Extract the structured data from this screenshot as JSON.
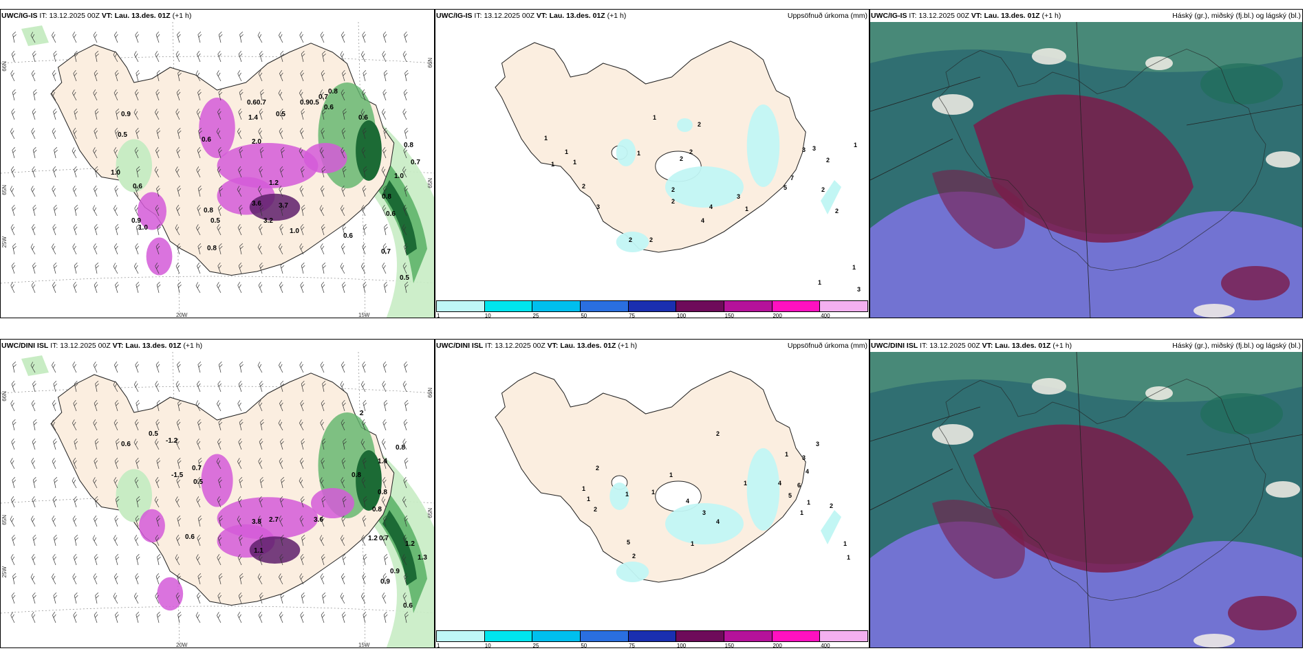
{
  "rows": [
    {
      "panels": [
        {
          "model": "UWC/IG-IS",
          "it_label": "IT:",
          "it_value": "13.12.2025 00Z",
          "vt_label": "VT:",
          "vt_value": "Lau. 13.des. 01Z",
          "offset": "(+1 h)",
          "right_title": ""
        },
        {
          "model": "UWC/IG-IS",
          "it_label": "IT:",
          "it_value": "13.12.2025 00Z",
          "vt_label": "VT:",
          "vt_value": "Lau. 13.des. 01Z",
          "offset": "(+1 h)",
          "right_title": "Uppsöfnuð úrkoma (mm)"
        },
        {
          "model": "UWC/IG-IS",
          "it_label": "IT:",
          "it_value": "13.12.2025 00Z",
          "vt_label": "VT:",
          "vt_value": "Lau. 13.des. 01Z",
          "offset": "(+1 h)",
          "right_title": "Háský (gr.), miðský (fj.bl.) og lágský (bl.)"
        }
      ]
    },
    {
      "panels": [
        {
          "model": "UWC/DINI ISL",
          "it_label": "IT:",
          "it_value": "13.12.2025 00Z",
          "vt_label": "VT:",
          "vt_value": "Lau. 13.des. 01Z",
          "offset": "(+1 h)",
          "right_title": ""
        },
        {
          "model": "UWC/DINI ISL",
          "it_label": "IT:",
          "it_value": "13.12.2025 00Z",
          "vt_label": "VT:",
          "vt_value": "Lau. 13.des. 01Z",
          "offset": "(+1 h)",
          "right_title": "Uppsöfnuð úrkoma (mm)"
        },
        {
          "model": "UWC/DINI ISL",
          "it_label": "IT:",
          "it_value": "13.12.2025 00Z",
          "vt_label": "VT:",
          "vt_value": "Lau. 13.des. 01Z",
          "offset": "(+1 h)",
          "right_title": "Háský (gr.), miðský (fj.bl.) og lágský (bl.)"
        }
      ]
    }
  ],
  "coord_labels": {
    "lat66": "66N",
    "lat65": "65N",
    "lon25": "25W",
    "lon20": "20W",
    "lon15": "15W"
  },
  "legend": {
    "labels": [
      "1",
      "10",
      "25",
      "50",
      "75",
      "100",
      "150",
      "200",
      "400"
    ],
    "colors": [
      "#bff7f7",
      "#00e5ee",
      "#00bfee",
      "#2a6fe0",
      "#1a2fb0",
      "#6e0b5a",
      "#b5129a",
      "#ff11c0",
      "#f3b0f0"
    ]
  },
  "colors": {
    "land": "#fbeee0",
    "coast": "#222222",
    "precip_light": "#c2f6f4",
    "green_light": "#c8ecc4",
    "green_mid": "#5fb46a",
    "green_dark": "#1c6b35",
    "magenta": "#d35ad8",
    "purple_dark": "#5e1f6b",
    "cloud_high": "#1f6e5a",
    "cloud_mid": "#7a1c4a",
    "cloud_low": "#4a48c8"
  },
  "labels": {
    "r0_wind": [
      {
        "t": "0.5",
        "x": 170,
        "y": 185
      },
      {
        "t": "0.9",
        "x": 175,
        "y": 155
      },
      {
        "t": "0.6",
        "x": 292,
        "y": 192
      },
      {
        "t": "0.8",
        "x": 300,
        "y": 350
      },
      {
        "t": "2.0",
        "x": 365,
        "y": 195
      },
      {
        "t": "1.4",
        "x": 360,
        "y": 160
      },
      {
        "t": "0.60.7",
        "x": 358,
        "y": 138
      },
      {
        "t": "0.5",
        "x": 400,
        "y": 155
      },
      {
        "t": "0.90.5",
        "x": 435,
        "y": 138
      },
      {
        "t": "0.7",
        "x": 462,
        "y": 130
      },
      {
        "t": "0.6",
        "x": 470,
        "y": 145
      },
      {
        "t": "0.8",
        "x": 476,
        "y": 122
      },
      {
        "t": "0.6",
        "x": 520,
        "y": 160
      },
      {
        "t": "0.8",
        "x": 586,
        "y": 200
      },
      {
        "t": "0.7",
        "x": 596,
        "y": 225
      },
      {
        "t": "1.0",
        "x": 572,
        "y": 245
      },
      {
        "t": "0.8",
        "x": 554,
        "y": 275
      },
      {
        "t": "0.6",
        "x": 560,
        "y": 300
      },
      {
        "t": "0.6",
        "x": 498,
        "y": 332
      },
      {
        "t": "0.7",
        "x": 553,
        "y": 355
      },
      {
        "t": "0.5",
        "x": 580,
        "y": 393
      },
      {
        "t": "3.6",
        "x": 365,
        "y": 285
      },
      {
        "t": "3.2",
        "x": 382,
        "y": 310
      },
      {
        "t": "3.7",
        "x": 404,
        "y": 288
      },
      {
        "t": "1.0",
        "x": 420,
        "y": 325
      },
      {
        "t": "1.2",
        "x": 390,
        "y": 255
      },
      {
        "t": "0.6",
        "x": 192,
        "y": 260
      },
      {
        "t": "0.8",
        "x": 295,
        "y": 295
      },
      {
        "t": "0.5",
        "x": 305,
        "y": 310
      },
      {
        "t": "1.0",
        "x": 200,
        "y": 320
      },
      {
        "t": "0.9",
        "x": 190,
        "y": 310
      },
      {
        "t": "1.0",
        "x": 160,
        "y": 240
      }
    ],
    "r1_wind": [
      {
        "t": "0.6",
        "x": 175,
        "y": 155
      },
      {
        "t": "0.5",
        "x": 215,
        "y": 140
      },
      {
        "t": "-1.2",
        "x": 240,
        "y": 150
      },
      {
        "t": "-1.5",
        "x": 248,
        "y": 200
      },
      {
        "t": "0.5",
        "x": 280,
        "y": 210
      },
      {
        "t": "0.7",
        "x": 278,
        "y": 190
      },
      {
        "t": "0.6",
        "x": 268,
        "y": 290
      },
      {
        "t": "1.1",
        "x": 368,
        "y": 310
      },
      {
        "t": "2.7",
        "x": 390,
        "y": 265
      },
      {
        "t": "3.8",
        "x": 365,
        "y": 268
      },
      {
        "t": "3.6",
        "x": 455,
        "y": 265
      },
      {
        "t": "0.8",
        "x": 510,
        "y": 200
      },
      {
        "t": "0.8",
        "x": 574,
        "y": 160
      },
      {
        "t": "1.4",
        "x": 548,
        "y": 180
      },
      {
        "t": "0.8",
        "x": 540,
        "y": 250
      },
      {
        "t": "0.7",
        "x": 550,
        "y": 292
      },
      {
        "t": "1.2",
        "x": 588,
        "y": 300
      },
      {
        "t": "1.3",
        "x": 606,
        "y": 320
      },
      {
        "t": "0.9",
        "x": 566,
        "y": 340
      },
      {
        "t": "0.9",
        "x": 552,
        "y": 355
      },
      {
        "t": "0.6",
        "x": 585,
        "y": 390
      },
      {
        "t": "2",
        "x": 522,
        "y": 110
      },
      {
        "t": "1.2",
        "x": 534,
        "y": 292
      },
      {
        "t": "0.8",
        "x": 548,
        "y": 225
      }
    ],
    "r0_precip": [
      {
        "t": "1",
        "x": 948,
        "y": 160
      },
      {
        "t": "2",
        "x": 1013,
        "y": 170
      },
      {
        "t": "1",
        "x": 790,
        "y": 190
      },
      {
        "t": "1",
        "x": 820,
        "y": 210
      },
      {
        "t": "1",
        "x": 832,
        "y": 225
      },
      {
        "t": "1",
        "x": 800,
        "y": 228
      },
      {
        "t": "2",
        "x": 1001,
        "y": 210
      },
      {
        "t": "2",
        "x": 987,
        "y": 220
      },
      {
        "t": "1",
        "x": 925,
        "y": 212
      },
      {
        "t": "2",
        "x": 845,
        "y": 260
      },
      {
        "t": "3",
        "x": 866,
        "y": 290
      },
      {
        "t": "2",
        "x": 975,
        "y": 265
      },
      {
        "t": "2",
        "x": 975,
        "y": 282
      },
      {
        "t": "4",
        "x": 1030,
        "y": 290
      },
      {
        "t": "4",
        "x": 1018,
        "y": 310
      },
      {
        "t": "3",
        "x": 1070,
        "y": 275
      },
      {
        "t": "5",
        "x": 1138,
        "y": 262
      },
      {
        "t": "7",
        "x": 1148,
        "y": 248
      },
      {
        "t": "2",
        "x": 1193,
        "y": 265
      },
      {
        "t": "2",
        "x": 1213,
        "y": 296
      },
      {
        "t": "1",
        "x": 1240,
        "y": 200
      },
      {
        "t": "3",
        "x": 1165,
        "y": 207
      },
      {
        "t": "3",
        "x": 1180,
        "y": 205
      },
      {
        "t": "2",
        "x": 1200,
        "y": 222
      },
      {
        "t": "2",
        "x": 913,
        "y": 338
      },
      {
        "t": "2",
        "x": 943,
        "y": 338
      },
      {
        "t": "1",
        "x": 1188,
        "y": 400
      },
      {
        "t": "1",
        "x": 1238,
        "y": 378
      },
      {
        "t": "3",
        "x": 1245,
        "y": 410
      },
      {
        "t": "1",
        "x": 1082,
        "y": 293
      }
    ],
    "r1_precip": [
      {
        "t": "2",
        "x": 1040,
        "y": 140
      },
      {
        "t": "2",
        "x": 865,
        "y": 190
      },
      {
        "t": "1",
        "x": 845,
        "y": 220
      },
      {
        "t": "1",
        "x": 852,
        "y": 235
      },
      {
        "t": "2",
        "x": 862,
        "y": 250
      },
      {
        "t": "1",
        "x": 908,
        "y": 228
      },
      {
        "t": "1",
        "x": 946,
        "y": 225
      },
      {
        "t": "1",
        "x": 972,
        "y": 200
      },
      {
        "t": "4",
        "x": 996,
        "y": 238
      },
      {
        "t": "3",
        "x": 1020,
        "y": 255
      },
      {
        "t": "4",
        "x": 1040,
        "y": 268
      },
      {
        "t": "1",
        "x": 1140,
        "y": 170
      },
      {
        "t": "3",
        "x": 1185,
        "y": 155
      },
      {
        "t": "3",
        "x": 1165,
        "y": 175
      },
      {
        "t": "4",
        "x": 1170,
        "y": 195
      },
      {
        "t": "6",
        "x": 1158,
        "y": 215
      },
      {
        "t": "5",
        "x": 1145,
        "y": 230
      },
      {
        "t": "4",
        "x": 1130,
        "y": 212
      },
      {
        "t": "1",
        "x": 1172,
        "y": 240
      },
      {
        "t": "1",
        "x": 1162,
        "y": 255
      },
      {
        "t": "2",
        "x": 1205,
        "y": 245
      },
      {
        "t": "1",
        "x": 1003,
        "y": 300
      },
      {
        "t": "5",
        "x": 910,
        "y": 298
      },
      {
        "t": "2",
        "x": 918,
        "y": 318
      },
      {
        "t": "1",
        "x": 1230,
        "y": 320
      },
      {
        "t": "1",
        "x": 1225,
        "y": 300
      },
      {
        "t": "1",
        "x": 1080,
        "y": 212
      }
    ]
  }
}
